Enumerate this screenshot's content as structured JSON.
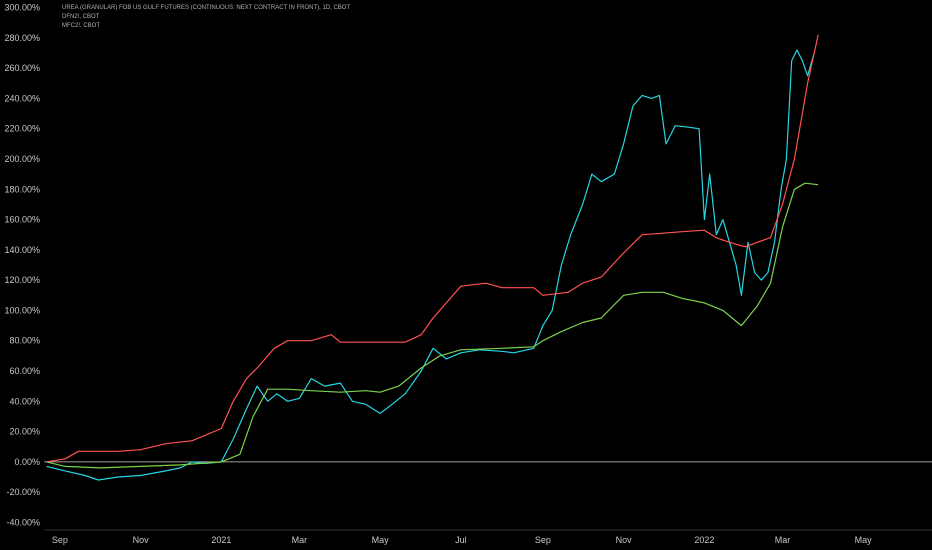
{
  "legend": {
    "line1": "UREA (GRANULAR) FOB US GULF FUTURES (CONTINUOUS: NEXT CONTRACT IN FRONT), 1D, CBOT",
    "line2": "DFN2!, CBOT",
    "line3": "MFC2!, CBOT"
  },
  "colors": {
    "background": "#000000",
    "zero_line": "#cfcfcf",
    "axis_text": "#c8c8c8"
  },
  "chart_data": {
    "type": "line",
    "ylim": [
      -45,
      305
    ],
    "y_unit": "%",
    "y_ticks": [
      "300.00%",
      "280.00%",
      "260.00%",
      "240.00%",
      "220.00%",
      "200.00%",
      "180.00%",
      "160.00%",
      "140.00%",
      "120.00%",
      "100.00%",
      "80.00%",
      "60.00%",
      "40.00%",
      "20.00%",
      "0.00%",
      "-20.00%",
      "-40.00%"
    ],
    "y_tick_values": [
      300,
      280,
      260,
      240,
      220,
      200,
      180,
      160,
      140,
      120,
      100,
      80,
      60,
      40,
      20,
      0,
      -20,
      -40
    ],
    "x_ticks": [
      {
        "label": "Sep",
        "date": "2020-09-01"
      },
      {
        "label": "Nov",
        "date": "2020-11-01"
      },
      {
        "label": "2021",
        "date": "2021-01-01"
      },
      {
        "label": "Mar",
        "date": "2021-03-01"
      },
      {
        "label": "May",
        "date": "2021-05-01"
      },
      {
        "label": "Jul",
        "date": "2021-07-01"
      },
      {
        "label": "Sep",
        "date": "2021-09-01"
      },
      {
        "label": "Nov",
        "date": "2021-11-01"
      },
      {
        "label": "2022",
        "date": "2022-01-01"
      },
      {
        "label": "Mar",
        "date": "2022-03-01"
      },
      {
        "label": "May",
        "date": "2022-05-01"
      }
    ],
    "xlim": [
      "2020-08-20",
      "2022-06-22"
    ],
    "series": [
      {
        "color": "#26d6e3",
        "points": [
          [
            "2020-08-22",
            -3
          ],
          [
            "2020-09-05",
            -6
          ],
          [
            "2020-09-20",
            -9
          ],
          [
            "2020-09-30",
            -12
          ],
          [
            "2020-10-15",
            -10
          ],
          [
            "2020-11-01",
            -9
          ],
          [
            "2020-11-20",
            -6
          ],
          [
            "2020-12-01",
            -4
          ],
          [
            "2020-12-10",
            0
          ],
          [
            "2020-12-20",
            -1
          ],
          [
            "2021-01-01",
            0
          ],
          [
            "2021-01-10",
            15
          ],
          [
            "2021-01-20",
            35
          ],
          [
            "2021-01-28",
            50
          ],
          [
            "2021-02-05",
            40
          ],
          [
            "2021-02-12",
            45
          ],
          [
            "2021-02-20",
            40
          ],
          [
            "2021-03-01",
            42
          ],
          [
            "2021-03-10",
            55
          ],
          [
            "2021-03-20",
            50
          ],
          [
            "2021-04-01",
            52
          ],
          [
            "2021-04-10",
            40
          ],
          [
            "2021-04-20",
            38
          ],
          [
            "2021-05-01",
            32
          ],
          [
            "2021-05-10",
            38
          ],
          [
            "2021-05-20",
            45
          ],
          [
            "2021-06-01",
            60
          ],
          [
            "2021-06-10",
            75
          ],
          [
            "2021-06-20",
            68
          ],
          [
            "2021-07-01",
            72
          ],
          [
            "2021-07-15",
            74
          ],
          [
            "2021-08-01",
            73
          ],
          [
            "2021-08-10",
            72
          ],
          [
            "2021-08-25",
            75
          ],
          [
            "2021-09-01",
            90
          ],
          [
            "2021-09-08",
            100
          ],
          [
            "2021-09-15",
            130
          ],
          [
            "2021-09-22",
            150
          ],
          [
            "2021-10-01",
            170
          ],
          [
            "2021-10-08",
            190
          ],
          [
            "2021-10-15",
            185
          ],
          [
            "2021-10-25",
            190
          ],
          [
            "2021-11-01",
            210
          ],
          [
            "2021-11-08",
            235
          ],
          [
            "2021-11-15",
            242
          ],
          [
            "2021-11-22",
            240
          ],
          [
            "2021-11-28",
            242
          ],
          [
            "2021-12-03",
            210
          ],
          [
            "2021-12-10",
            222
          ],
          [
            "2021-12-20",
            221
          ],
          [
            "2021-12-28",
            220
          ],
          [
            "2022-01-01",
            160
          ],
          [
            "2022-01-05",
            190
          ],
          [
            "2022-01-10",
            150
          ],
          [
            "2022-01-15",
            160
          ],
          [
            "2022-01-20",
            145
          ],
          [
            "2022-01-25",
            130
          ],
          [
            "2022-01-29",
            110
          ],
          [
            "2022-02-03",
            145
          ],
          [
            "2022-02-08",
            125
          ],
          [
            "2022-02-13",
            120
          ],
          [
            "2022-02-18",
            125
          ],
          [
            "2022-02-23",
            145
          ],
          [
            "2022-02-28",
            180
          ],
          [
            "2022-03-04",
            200
          ],
          [
            "2022-03-08",
            265
          ],
          [
            "2022-03-12",
            272
          ],
          [
            "2022-03-16",
            265
          ],
          [
            "2022-03-20",
            255
          ],
          [
            "2022-03-25",
            270
          ]
        ]
      },
      {
        "color": "#ff5252",
        "points": [
          [
            "2020-08-22",
            0
          ],
          [
            "2020-09-05",
            2
          ],
          [
            "2020-09-15",
            7
          ],
          [
            "2020-10-15",
            7
          ],
          [
            "2020-11-01",
            8
          ],
          [
            "2020-11-20",
            12
          ],
          [
            "2020-12-10",
            14
          ],
          [
            "2021-01-01",
            22
          ],
          [
            "2021-01-10",
            40
          ],
          [
            "2021-01-20",
            55
          ],
          [
            "2021-01-28",
            62
          ],
          [
            "2021-02-10",
            75
          ],
          [
            "2021-02-20",
            80
          ],
          [
            "2021-03-10",
            80
          ],
          [
            "2021-03-25",
            84
          ],
          [
            "2021-04-01",
            79
          ],
          [
            "2021-05-01",
            79
          ],
          [
            "2021-05-20",
            79
          ],
          [
            "2021-06-01",
            84
          ],
          [
            "2021-06-10",
            95
          ],
          [
            "2021-06-20",
            105
          ],
          [
            "2021-07-01",
            116
          ],
          [
            "2021-07-20",
            118
          ],
          [
            "2021-08-01",
            115
          ],
          [
            "2021-08-25",
            115
          ],
          [
            "2021-09-01",
            110
          ],
          [
            "2021-09-20",
            112
          ],
          [
            "2021-10-01",
            118
          ],
          [
            "2021-10-15",
            122
          ],
          [
            "2021-11-01",
            138
          ],
          [
            "2021-11-15",
            150
          ],
          [
            "2021-12-01",
            151
          ],
          [
            "2021-12-15",
            152
          ],
          [
            "2022-01-01",
            153
          ],
          [
            "2022-01-10",
            148
          ],
          [
            "2022-01-20",
            145
          ],
          [
            "2022-02-01",
            142
          ],
          [
            "2022-02-10",
            145
          ],
          [
            "2022-02-20",
            148
          ],
          [
            "2022-03-01",
            170
          ],
          [
            "2022-03-10",
            200
          ],
          [
            "2022-03-20",
            250
          ],
          [
            "2022-03-28",
            282
          ]
        ]
      },
      {
        "color": "#7bd34d",
        "points": [
          [
            "2020-08-22",
            0
          ],
          [
            "2020-09-05",
            -3
          ],
          [
            "2020-10-01",
            -4
          ],
          [
            "2020-11-01",
            -3
          ],
          [
            "2020-12-01",
            -2
          ],
          [
            "2021-01-01",
            0
          ],
          [
            "2021-01-15",
            5
          ],
          [
            "2021-01-25",
            30
          ],
          [
            "2021-02-05",
            48
          ],
          [
            "2021-02-20",
            48
          ],
          [
            "2021-03-10",
            47
          ],
          [
            "2021-04-01",
            46
          ],
          [
            "2021-04-20",
            47
          ],
          [
            "2021-05-01",
            46
          ],
          [
            "2021-05-15",
            50
          ],
          [
            "2021-06-01",
            62
          ],
          [
            "2021-06-15",
            70
          ],
          [
            "2021-07-01",
            74
          ],
          [
            "2021-08-01",
            75
          ],
          [
            "2021-08-25",
            76
          ],
          [
            "2021-09-01",
            80
          ],
          [
            "2021-09-15",
            86
          ],
          [
            "2021-10-01",
            92
          ],
          [
            "2021-10-15",
            95
          ],
          [
            "2021-11-01",
            110
          ],
          [
            "2021-11-15",
            112
          ],
          [
            "2021-12-01",
            112
          ],
          [
            "2021-12-15",
            108
          ],
          [
            "2022-01-01",
            105
          ],
          [
            "2022-01-15",
            100
          ],
          [
            "2022-01-29",
            90
          ],
          [
            "2022-02-10",
            103
          ],
          [
            "2022-02-20",
            118
          ],
          [
            "2022-03-01",
            155
          ],
          [
            "2022-03-10",
            180
          ],
          [
            "2022-03-18",
            184
          ],
          [
            "2022-03-28",
            183
          ]
        ]
      }
    ]
  }
}
